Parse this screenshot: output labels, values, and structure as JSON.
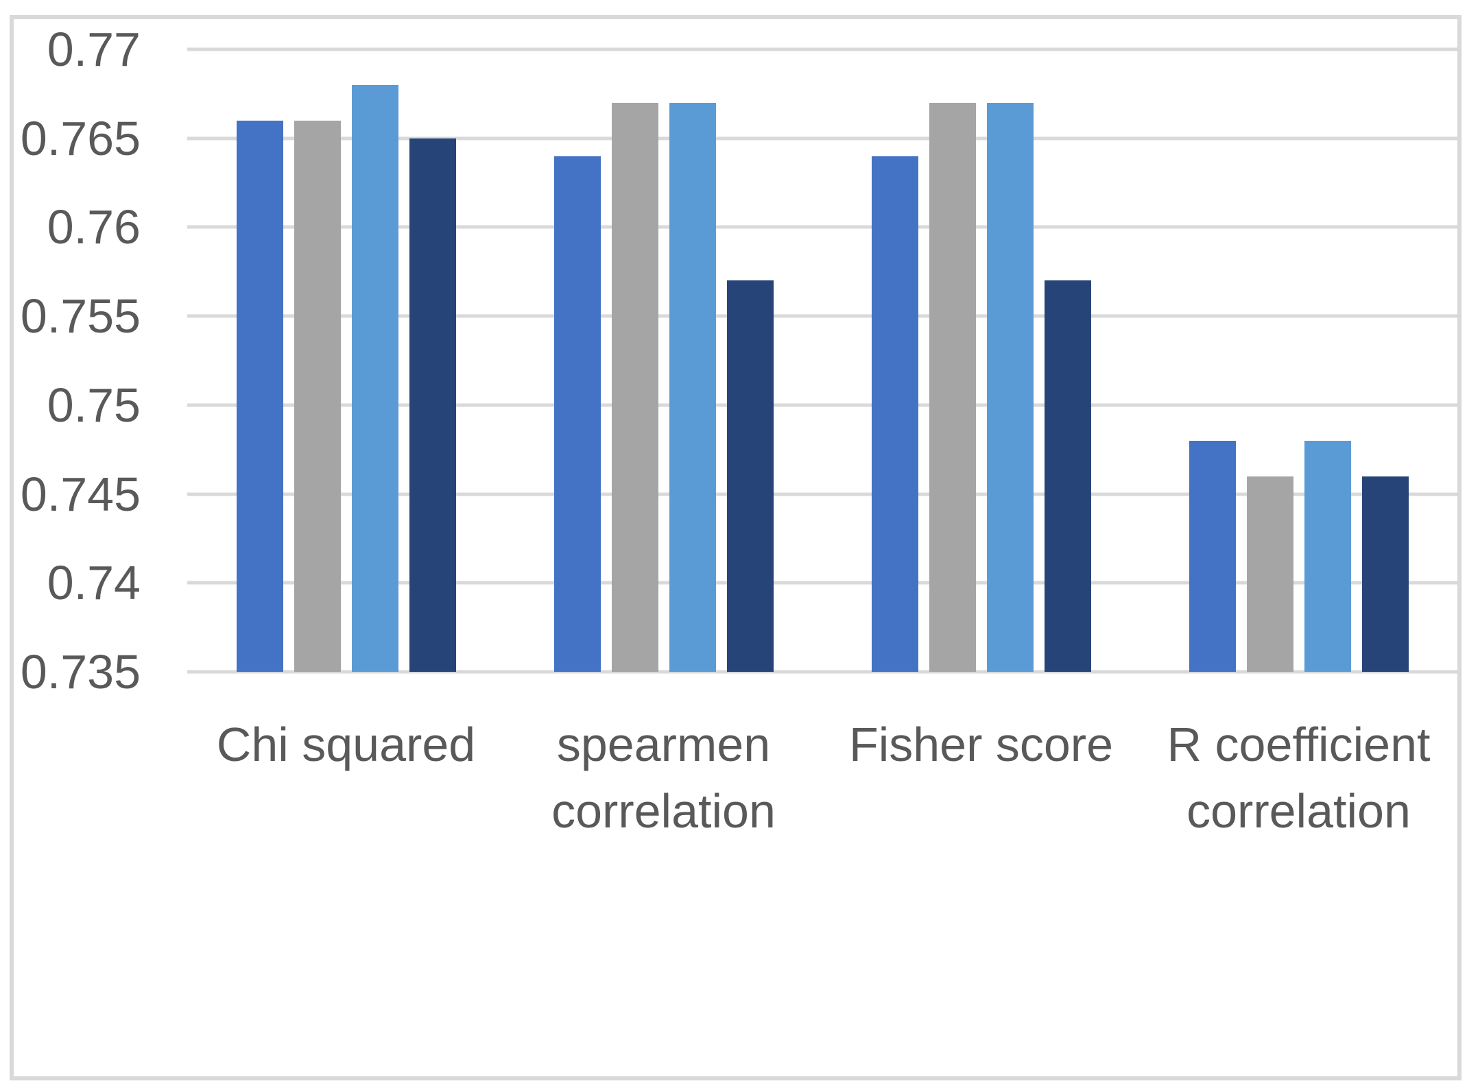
{
  "chart_data": {
    "type": "bar",
    "title": "",
    "xlabel": "",
    "ylabel": "",
    "categories": [
      "Chi squared",
      "spearmen correlation",
      "Fisher score",
      "R coefficient correlation"
    ],
    "series": [
      {
        "name": "blue",
        "color": "#4472C4",
        "values": [
          0.766,
          0.764,
          0.764,
          0.748
        ]
      },
      {
        "name": "gray",
        "color": "#A5A5A5",
        "values": [
          0.766,
          0.767,
          0.767,
          0.746
        ]
      },
      {
        "name": "light-blue",
        "color": "#5B9BD5",
        "values": [
          0.768,
          0.767,
          0.767,
          0.748
        ]
      },
      {
        "name": "dark-blue",
        "color": "#264478",
        "values": [
          0.765,
          0.757,
          0.757,
          0.746
        ]
      }
    ],
    "ylim": [
      0.735,
      0.77
    ],
    "ytick_step": 0.005,
    "ytick_labels": [
      "0.77",
      "0.765",
      "0.76",
      "0.755",
      "0.75",
      "0.745",
      "0.74",
      "0.735"
    ],
    "grid": true,
    "legend_position": "none"
  },
  "colors": {
    "background": "#FFFFFF",
    "gridline": "#D9D9D9",
    "frame_border": "#D9D9D9",
    "axis_text": "#595959"
  }
}
